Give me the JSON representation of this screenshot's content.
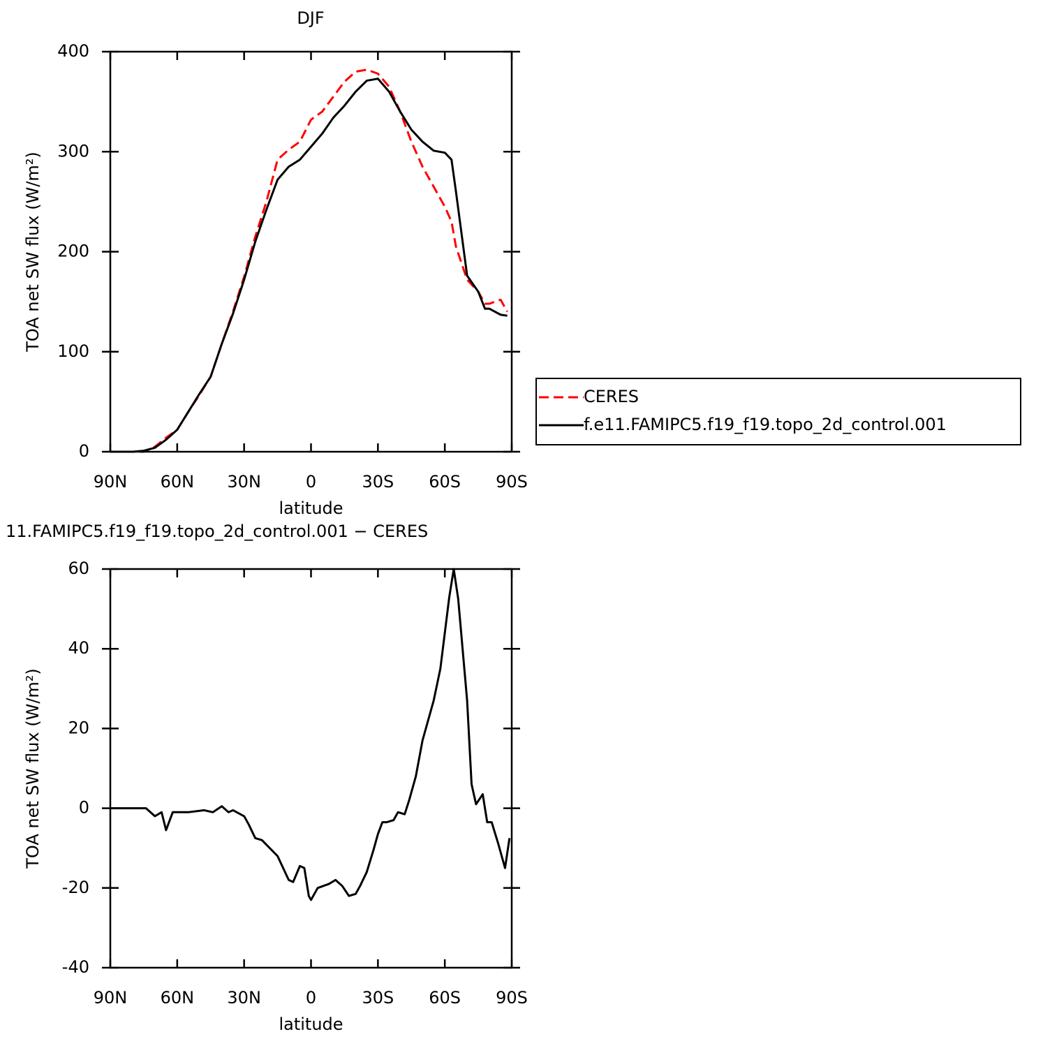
{
  "chart_data": [
    {
      "type": "line",
      "title": "DJF",
      "xlabel": "latitude",
      "ylabel": "TOA net SW flux (W/m²)",
      "x": [
        90,
        85,
        80,
        75,
        70,
        65,
        60,
        55,
        50,
        45,
        40,
        35,
        30,
        25,
        20,
        15,
        10,
        5,
        0,
        -5,
        -10,
        -15,
        -20,
        -25,
        -30,
        -35,
        -40,
        -45,
        -50,
        -55,
        -60,
        -63,
        -65,
        -70,
        -75,
        -78,
        -80,
        -85,
        -88
      ],
      "series": [
        {
          "name": "CERES",
          "color": "#ff0000",
          "dashed": true,
          "values": [
            0,
            0,
            0,
            0,
            5,
            14,
            22,
            40,
            57,
            75,
            108,
            140,
            175,
            215,
            250,
            292,
            302,
            310,
            332,
            340,
            355,
            370,
            380,
            382,
            378,
            365,
            340,
            310,
            285,
            265,
            245,
            230,
            205,
            172,
            160,
            148,
            148,
            152,
            140
          ]
        },
        {
          "name": "f.e11.FAMIPC5.f19_f19.topo_2d_control.001",
          "color": "#000000",
          "dashed": false,
          "values": [
            0,
            0,
            0,
            1,
            4,
            12,
            22,
            40,
            58,
            75,
            108,
            138,
            172,
            210,
            242,
            272,
            285,
            292,
            305,
            318,
            334,
            346,
            360,
            371,
            373,
            360,
            340,
            322,
            310,
            301,
            299,
            292,
            260,
            176,
            160,
            143,
            143,
            137,
            136
          ]
        }
      ],
      "xlim": [
        90,
        -90
      ],
      "xticks": [
        {
          "value": 90,
          "label": "90N"
        },
        {
          "value": 60,
          "label": "60N"
        },
        {
          "value": 30,
          "label": "30N"
        },
        0,
        {
          "value": -30,
          "label": "30S"
        },
        {
          "value": -60,
          "label": "60S"
        },
        {
          "value": -90,
          "label": "90S"
        }
      ],
      "ylim": [
        0,
        400
      ],
      "yticks": [
        0,
        100,
        200,
        300,
        400
      ],
      "legend": "right"
    },
    {
      "type": "line",
      "title": "11.FAMIPC5.f19_f19.topo_2d_control.001 − CERES",
      "xlabel": "latitude",
      "ylabel": "TOA net SW flux (W/m²)",
      "x": [
        90,
        80,
        74,
        70,
        67,
        65,
        62,
        55,
        48,
        44,
        40,
        37,
        35,
        30,
        28,
        25,
        22,
        15,
        10,
        8,
        5,
        3,
        1,
        0,
        -3,
        -8,
        -11,
        -14,
        -17,
        -20,
        -22,
        -25,
        -28,
        -30,
        -32,
        -34,
        -37,
        -39,
        -42,
        -44,
        -47,
        -50,
        -55,
        -58,
        -62,
        -64,
        -66,
        -70,
        -72,
        -74,
        -77,
        -79,
        -81,
        -84,
        -87,
        -89
      ],
      "series": [
        {
          "color": "#000000",
          "dashed": false,
          "values": [
            0,
            0,
            0,
            -2,
            -1,
            -5.5,
            -1,
            -1,
            -0.5,
            -1,
            0.5,
            -1,
            -0.5,
            -2,
            -4,
            -7.5,
            -8,
            -12,
            -18,
            -18.5,
            -14.5,
            -15,
            -22,
            -23,
            -20,
            -19,
            -18,
            -19.5,
            -22,
            -21.5,
            -19.5,
            -16,
            -10.5,
            -6.5,
            -3.5,
            -3.5,
            -3,
            -1,
            -1.5,
            2,
            8,
            17,
            27,
            35,
            53,
            60,
            52.5,
            27,
            6,
            1,
            3.5,
            -3.5,
            -3.5,
            -9,
            -15,
            -7.5
          ]
        }
      ],
      "xlim": [
        90,
        -90
      ],
      "xticks": [
        {
          "value": 90,
          "label": "90N"
        },
        {
          "value": 60,
          "label": "60N"
        },
        {
          "value": 30,
          "label": "30N"
        },
        0,
        {
          "value": -30,
          "label": "30S"
        },
        {
          "value": -60,
          "label": "60S"
        },
        {
          "value": -90,
          "label": "90S"
        }
      ],
      "ylim": [
        -40,
        60
      ],
      "yticks": [
        -40,
        -20,
        0,
        20,
        40,
        60
      ]
    }
  ]
}
